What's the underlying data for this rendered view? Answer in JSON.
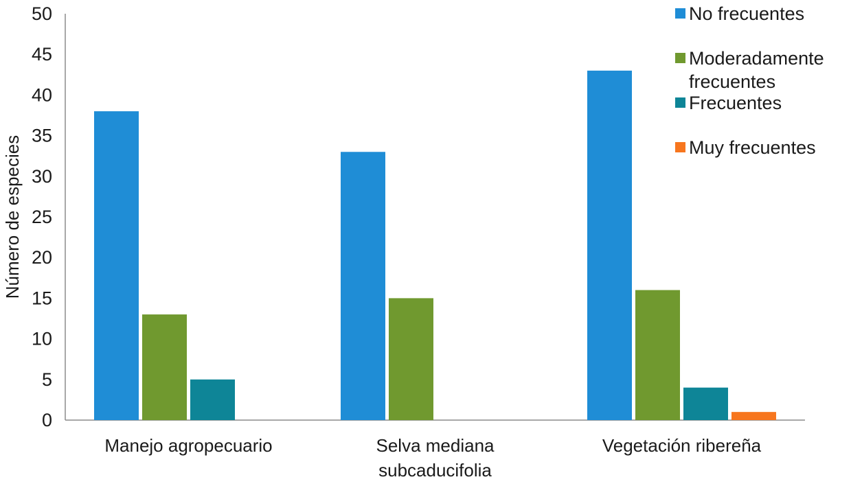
{
  "chart_data": {
    "type": "bar",
    "title": "",
    "xlabel": "",
    "ylabel": "Número de especies",
    "ylim": [
      0,
      50
    ],
    "yticks": [
      0,
      5,
      10,
      15,
      20,
      25,
      30,
      35,
      40,
      45,
      50
    ],
    "grid": false,
    "legend_position": "top-right",
    "categories": [
      [
        "Manejo agropecuario"
      ],
      [
        "Selva mediana",
        "subcaducifolia"
      ],
      [
        "Vegetación ribereña"
      ]
    ],
    "series": [
      {
        "name": [
          "No frecuentes"
        ],
        "color": "#1f8dd6",
        "values": [
          38,
          33,
          43
        ]
      },
      {
        "name": [
          "Moderadamente",
          "frecuentes"
        ],
        "color": "#70992f",
        "values": [
          13,
          15,
          16
        ]
      },
      {
        "name": [
          "Frecuentes"
        ],
        "color": "#0e8597",
        "values": [
          5,
          0,
          4
        ]
      },
      {
        "name": [
          "Muy frecuentes"
        ],
        "color": "#f7761e",
        "values": [
          0,
          0,
          1
        ]
      }
    ]
  }
}
